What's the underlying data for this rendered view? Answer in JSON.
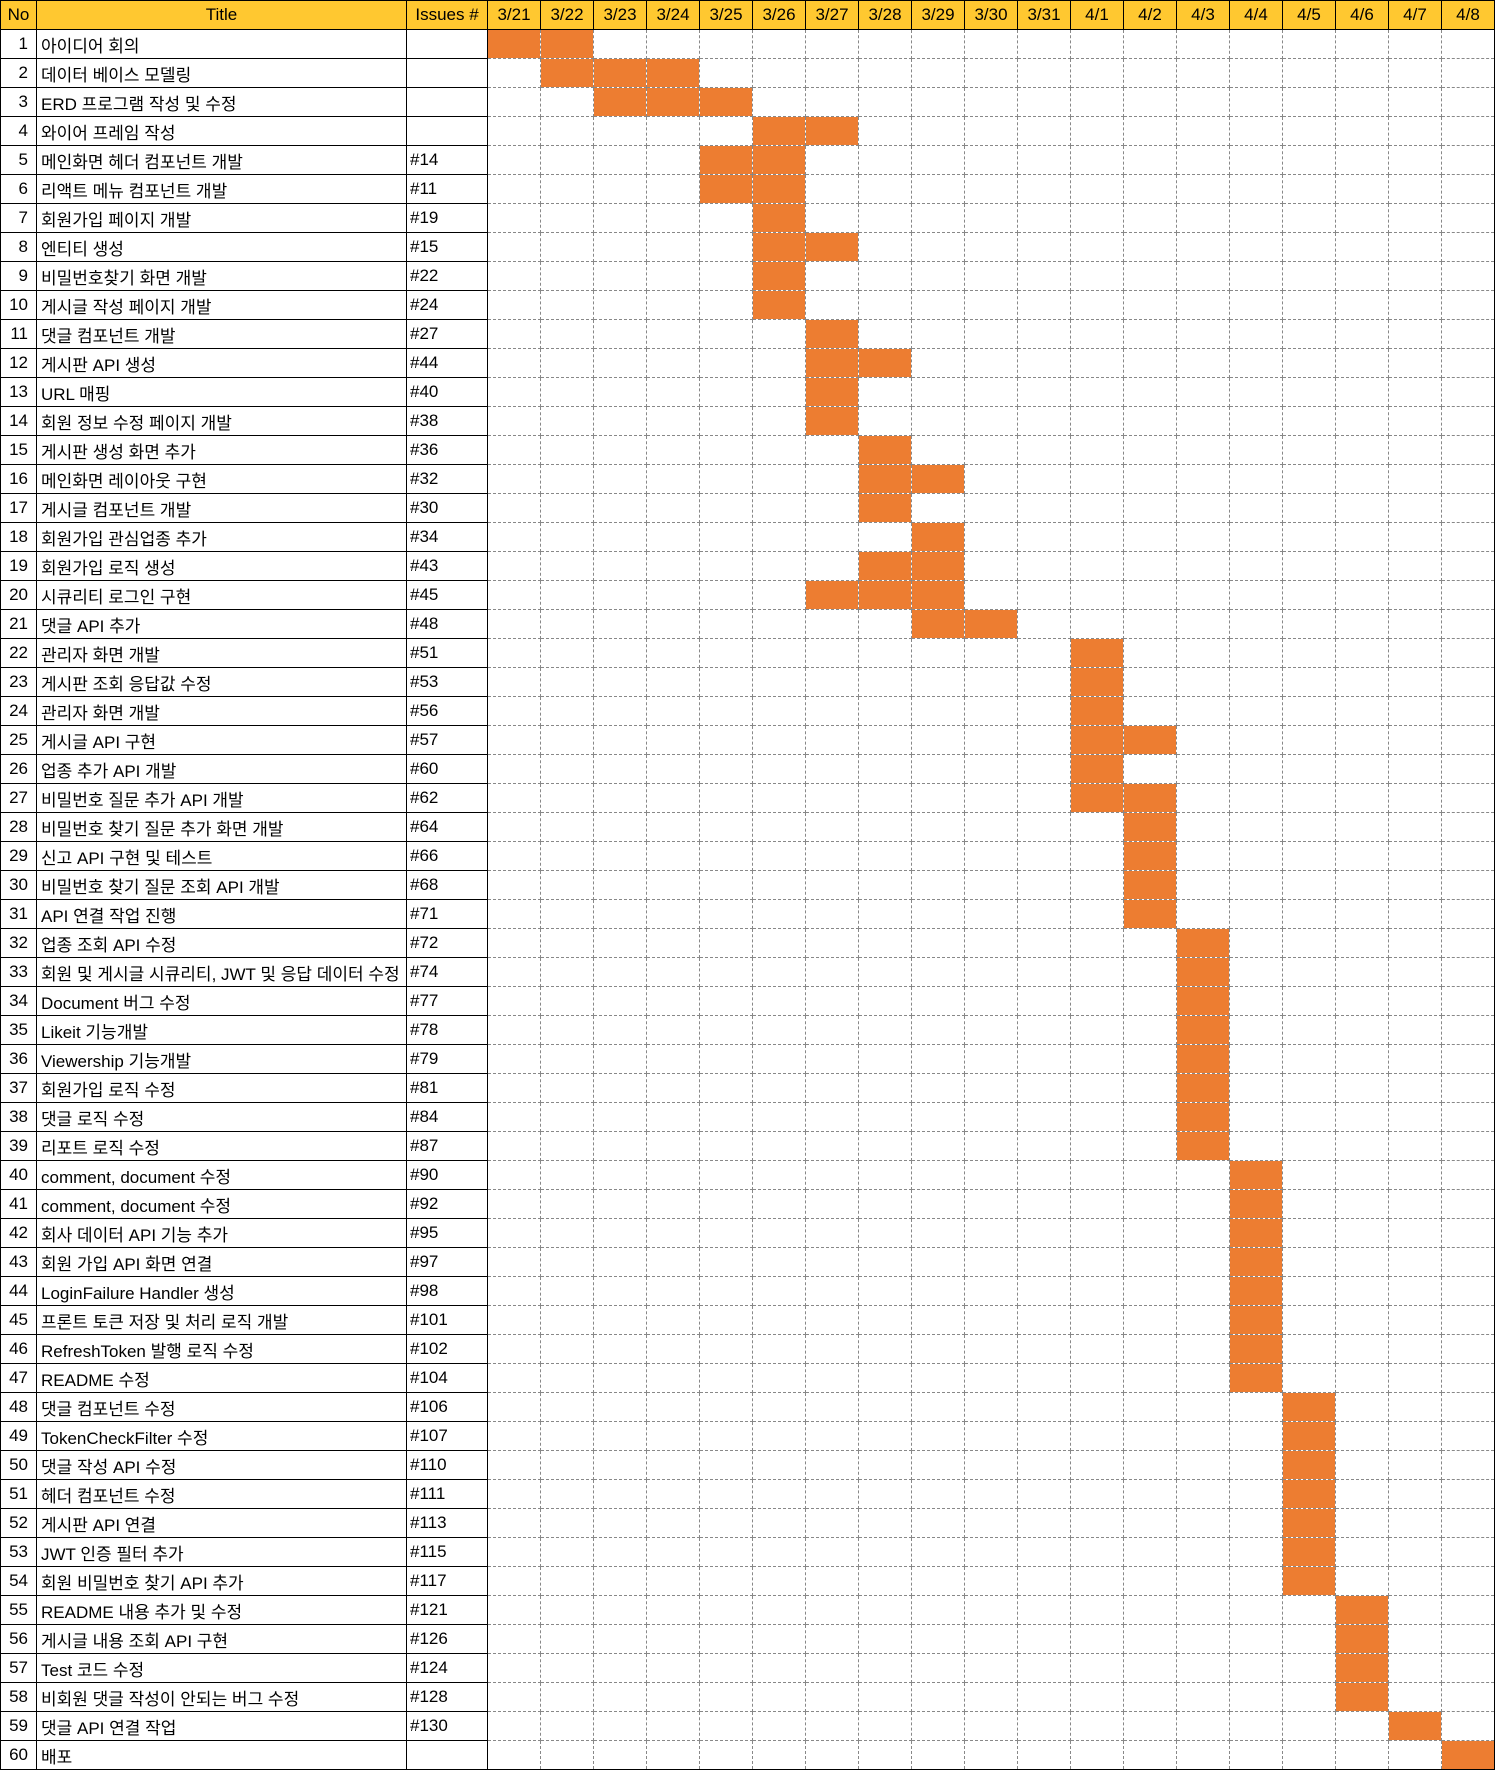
{
  "chart_data": {
    "type": "table",
    "headers": {
      "no": "No",
      "title": "Title",
      "issues": "Issues #"
    },
    "dates": [
      "3/21",
      "3/22",
      "3/23",
      "3/24",
      "3/25",
      "3/26",
      "3/27",
      "3/28",
      "3/29",
      "3/30",
      "3/31",
      "4/1",
      "4/2",
      "4/3",
      "4/4",
      "4/5",
      "4/6",
      "4/7",
      "4/8"
    ],
    "colors": {
      "header": "#ffc830",
      "bar": "#ed7d31"
    },
    "tasks": [
      {
        "no": "1",
        "title": "아이디어 회의",
        "issue": "",
        "days": [
          "3/21",
          "3/22"
        ]
      },
      {
        "no": "2",
        "title": "데이터 베이스 모델링",
        "issue": "",
        "days": [
          "3/22",
          "3/23",
          "3/24"
        ]
      },
      {
        "no": "3",
        "title": "ERD 프로그램 작성 및 수정",
        "issue": "",
        "days": [
          "3/23",
          "3/24",
          "3/25"
        ]
      },
      {
        "no": "4",
        "title": "와이어 프레임 작성",
        "issue": "",
        "days": [
          "3/26",
          "3/27"
        ]
      },
      {
        "no": "5",
        "title": "메인화면 헤더 컴포넌트 개발",
        "issue": "#14",
        "days": [
          "3/25",
          "3/26"
        ]
      },
      {
        "no": "6",
        "title": "리액트 메뉴 컴포넌트 개발",
        "issue": "#11",
        "days": [
          "3/25",
          "3/26"
        ]
      },
      {
        "no": "7",
        "title": "회원가입 페이지 개발",
        "issue": "#19",
        "days": [
          "3/26"
        ]
      },
      {
        "no": "8",
        "title": "엔티티 생성",
        "issue": "#15",
        "days": [
          "3/26",
          "3/27"
        ]
      },
      {
        "no": "9",
        "title": "비밀번호찾기 화면 개발",
        "issue": "#22",
        "days": [
          "3/26"
        ]
      },
      {
        "no": "10",
        "title": "게시글 작성 페이지 개발",
        "issue": "#24",
        "days": [
          "3/26"
        ]
      },
      {
        "no": "11",
        "title": "댓글 컴포넌트 개발",
        "issue": "#27",
        "days": [
          "3/27"
        ]
      },
      {
        "no": "12",
        "title": "게시판 API 생성",
        "issue": "#44",
        "days": [
          "3/27",
          "3/28"
        ]
      },
      {
        "no": "13",
        "title": "URL 매핑",
        "issue": "#40",
        "days": [
          "3/27"
        ]
      },
      {
        "no": "14",
        "title": "회원 정보 수정 페이지 개발",
        "issue": "#38",
        "days": [
          "3/27"
        ]
      },
      {
        "no": "15",
        "title": "게시판 생성 화면 추가",
        "issue": "#36",
        "days": [
          "3/28"
        ]
      },
      {
        "no": "16",
        "title": "메인화면 레이아웃 구현",
        "issue": "#32",
        "days": [
          "3/28",
          "3/29"
        ]
      },
      {
        "no": "17",
        "title": "게시글 컴포넌트 개발",
        "issue": "#30",
        "days": [
          "3/28"
        ]
      },
      {
        "no": "18",
        "title": "회원가입 관심업종 추가",
        "issue": "#34",
        "days": [
          "3/29"
        ]
      },
      {
        "no": "19",
        "title": "회원가입 로직 생성",
        "issue": "#43",
        "days": [
          "3/28",
          "3/29"
        ]
      },
      {
        "no": "20",
        "title": "시큐리티 로그인 구현",
        "issue": "#45",
        "days": [
          "3/27",
          "3/28",
          "3/29"
        ]
      },
      {
        "no": "21",
        "title": "댓글 API 추가",
        "issue": "#48",
        "days": [
          "3/29",
          "3/30"
        ]
      },
      {
        "no": "22",
        "title": "관리자 화면 개발",
        "issue": "#51",
        "days": [
          "4/1"
        ]
      },
      {
        "no": "23",
        "title": "게시판 조회 응답값 수정",
        "issue": "#53",
        "days": [
          "4/1"
        ]
      },
      {
        "no": "24",
        "title": "관리자 화면 개발",
        "issue": "#56",
        "days": [
          "4/1"
        ]
      },
      {
        "no": "25",
        "title": "게시글 API 구현",
        "issue": "#57",
        "days": [
          "4/1",
          "4/2"
        ]
      },
      {
        "no": "26",
        "title": "업종 추가 API 개발",
        "issue": "#60",
        "days": [
          "4/1"
        ]
      },
      {
        "no": "27",
        "title": "비밀번호 질문 추가 API 개발",
        "issue": "#62",
        "days": [
          "4/1",
          "4/2"
        ]
      },
      {
        "no": "28",
        "title": "비밀번호 찾기 질문 추가 화면 개발",
        "issue": "#64",
        "days": [
          "4/2"
        ]
      },
      {
        "no": "29",
        "title": "신고 API 구현 및 테스트",
        "issue": "#66",
        "days": [
          "4/2"
        ]
      },
      {
        "no": "30",
        "title": "비밀번호 찾기 질문 조회 API 개발",
        "issue": "#68",
        "days": [
          "4/2"
        ]
      },
      {
        "no": "31",
        "title": "API 연결 작업 진행",
        "issue": "#71",
        "days": [
          "4/2"
        ]
      },
      {
        "no": "32",
        "title": "업종 조회 API 수정",
        "issue": "#72",
        "days": [
          "4/3"
        ]
      },
      {
        "no": "33",
        "title": "회원 및 게시글 시큐리티, JWT 및 응답 데이터 수정",
        "issue": "#74",
        "days": [
          "4/3"
        ]
      },
      {
        "no": "34",
        "title": "Document 버그 수정",
        "issue": "#77",
        "days": [
          "4/3"
        ]
      },
      {
        "no": "35",
        "title": "Likeit 기능개발",
        "issue": "#78",
        "days": [
          "4/3"
        ]
      },
      {
        "no": "36",
        "title": "Viewership 기능개발",
        "issue": "#79",
        "days": [
          "4/3"
        ]
      },
      {
        "no": "37",
        "title": "회원가입 로직 수정",
        "issue": "#81",
        "days": [
          "4/3"
        ]
      },
      {
        "no": "38",
        "title": "댓글 로직 수정",
        "issue": "#84",
        "days": [
          "4/3"
        ]
      },
      {
        "no": "39",
        "title": "리포트 로직 수정",
        "issue": "#87",
        "days": [
          "4/3"
        ]
      },
      {
        "no": "40",
        "title": "comment, document 수정",
        "issue": "#90",
        "days": [
          "4/4"
        ]
      },
      {
        "no": "41",
        "title": "comment, document 수정",
        "issue": "#92",
        "days": [
          "4/4"
        ]
      },
      {
        "no": "42",
        "title": "회사 데이터 API 기능 추가",
        "issue": "#95",
        "days": [
          "4/4"
        ]
      },
      {
        "no": "43",
        "title": "회원 가입 API 화면 연결",
        "issue": "#97",
        "days": [
          "4/4"
        ]
      },
      {
        "no": "44",
        "title": "LoginFailure Handler 생성",
        "issue": "#98",
        "days": [
          "4/4"
        ]
      },
      {
        "no": "45",
        "title": "프론트 토큰 저장 및 처리 로직 개발",
        "issue": "#101",
        "days": [
          "4/4"
        ]
      },
      {
        "no": "46",
        "title": "RefreshToken 발행 로직 수정",
        "issue": "#102",
        "days": [
          "4/4"
        ]
      },
      {
        "no": "47",
        "title": "README 수정",
        "issue": "#104",
        "days": [
          "4/4"
        ]
      },
      {
        "no": "48",
        "title": "댓글 컴포넌트 수정",
        "issue": "#106",
        "days": [
          "4/5"
        ]
      },
      {
        "no": "49",
        "title": "TokenCheckFilter 수정",
        "issue": "#107",
        "days": [
          "4/5"
        ]
      },
      {
        "no": "50",
        "title": "댓글 작성 API 수정",
        "issue": "#110",
        "days": [
          "4/5"
        ]
      },
      {
        "no": "51",
        "title": "헤더 컴포넌트 수정",
        "issue": "#111",
        "days": [
          "4/5"
        ]
      },
      {
        "no": "52",
        "title": "게시판 API 연결",
        "issue": "#113",
        "days": [
          "4/5"
        ]
      },
      {
        "no": "53",
        "title": "JWT 인증 필터 추가",
        "issue": "#115",
        "days": [
          "4/5"
        ]
      },
      {
        "no": "54",
        "title": "회원 비밀번호 찾기 API 추가",
        "issue": "#117",
        "days": [
          "4/5"
        ]
      },
      {
        "no": "55",
        "title": "README 내용 추가 및 수정",
        "issue": "#121",
        "days": [
          "4/6"
        ]
      },
      {
        "no": "56",
        "title": "게시글 내용 조회 API 구현",
        "issue": "#126",
        "days": [
          "4/6"
        ]
      },
      {
        "no": "57",
        "title": "Test 코드 수정",
        "issue": "#124",
        "days": [
          "4/6"
        ]
      },
      {
        "no": "58",
        "title": "비회원 댓글 작성이 안되는 버그 수정",
        "issue": "#128",
        "days": [
          "4/6"
        ]
      },
      {
        "no": "59",
        "title": "댓글 API 연결 작업",
        "issue": "#130",
        "days": [
          "4/7"
        ]
      },
      {
        "no": "60",
        "title": "배포",
        "issue": "",
        "days": [
          "4/8"
        ]
      }
    ]
  }
}
